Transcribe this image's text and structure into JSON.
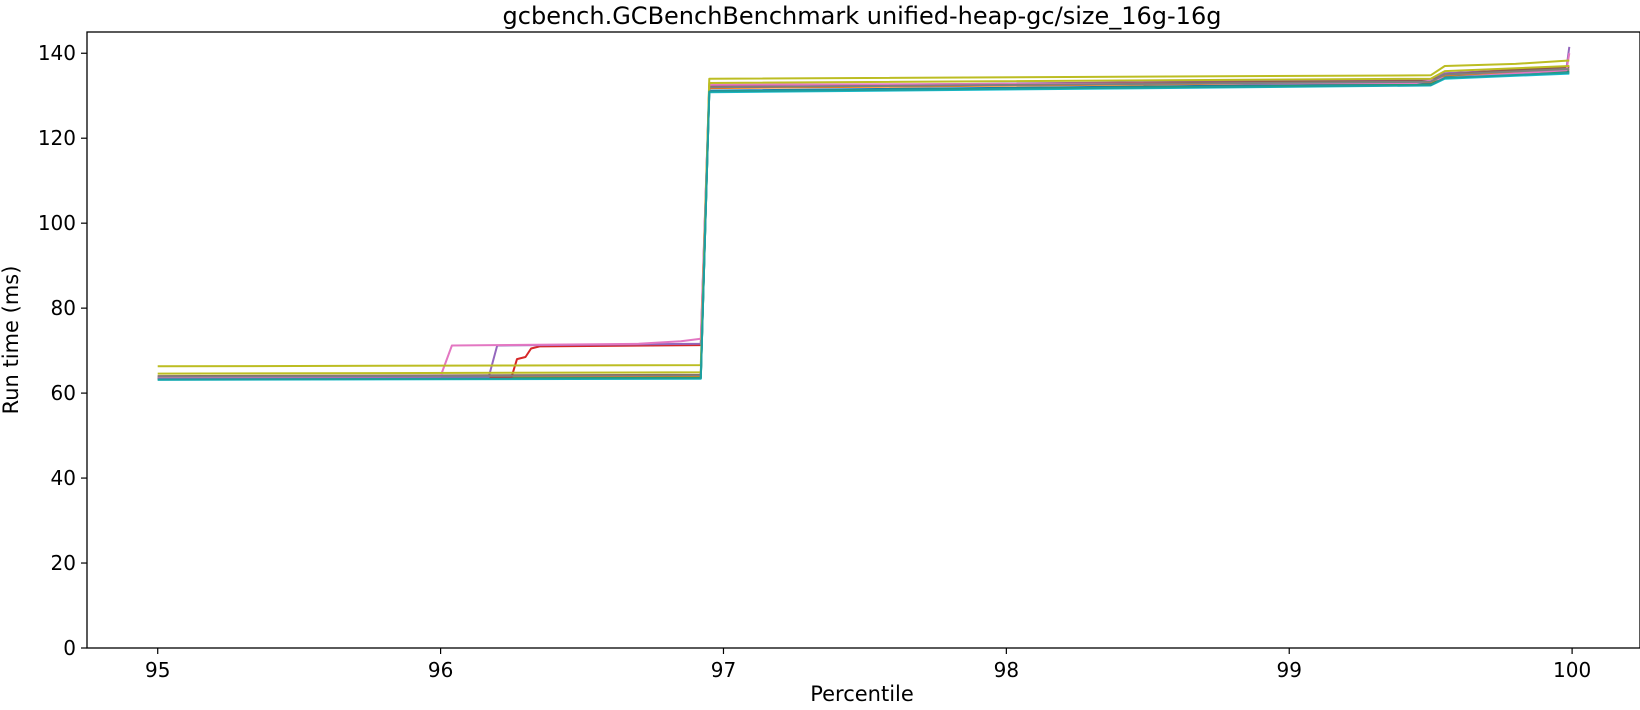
{
  "chart_data": {
    "type": "line",
    "title": "gcbench.GCBenchBenchmark unified-heap-gc/size_16g-16g",
    "xlabel": "Percentile",
    "ylabel": "Run time (ms)",
    "xlim": [
      94.75,
      100.24
    ],
    "ylim": [
      0,
      145
    ],
    "xticks": [
      95,
      96,
      97,
      98,
      99,
      100
    ],
    "yticks": [
      0,
      20,
      40,
      60,
      80,
      100,
      120,
      140
    ],
    "grid": false,
    "legend": "none",
    "series": [
      {
        "color": "#1f77b4",
        "x": [
          95,
          96.92,
          96.95,
          99.5,
          99.55,
          99.99
        ],
        "y": [
          63.5,
          63.8,
          131.2,
          132.8,
          134.5,
          135.8
        ]
      },
      {
        "color": "#ff7f0e",
        "x": [
          95,
          96.92,
          96.95,
          99.5,
          99.55,
          99.99
        ],
        "y": [
          63.8,
          64.0,
          131.8,
          133.2,
          134.8,
          136.2
        ]
      },
      {
        "color": "#2ca02c",
        "x": [
          95,
          96.92,
          96.95,
          99.5,
          99.55,
          99.99
        ],
        "y": [
          63.3,
          63.6,
          131.0,
          132.6,
          134.3,
          135.5
        ]
      },
      {
        "color": "#d62728",
        "x": [
          95,
          96.25,
          96.27,
          96.3,
          96.32,
          96.35,
          96.92,
          96.95,
          99.5,
          99.55,
          99.99
        ],
        "y": [
          63.5,
          63.6,
          68.0,
          68.5,
          70.5,
          71.0,
          71.3,
          132.0,
          133.6,
          135.2,
          136.8
        ]
      },
      {
        "color": "#9467bd",
        "x": [
          95,
          96.17,
          96.2,
          96.92,
          96.95,
          99.5,
          99.55,
          99.98,
          99.99
        ],
        "y": [
          63.6,
          63.8,
          71.2,
          71.6,
          132.2,
          133.8,
          135.3,
          136.5,
          141.5
        ]
      },
      {
        "color": "#8c564b",
        "x": [
          95,
          96.92,
          96.95,
          99.5,
          99.55,
          99.99
        ],
        "y": [
          64.0,
          64.3,
          132.3,
          133.5,
          135.0,
          136.8
        ]
      },
      {
        "color": "#e377c2",
        "x": [
          95,
          96.0,
          96.04,
          96.7,
          96.85,
          96.92,
          96.95,
          99.45,
          99.55,
          99.98,
          99.99
        ],
        "y": [
          63.8,
          64.0,
          71.2,
          71.6,
          72.2,
          72.8,
          132.6,
          133.0,
          134.2,
          136.0,
          140.0
        ]
      },
      {
        "color": "#7f7f7f",
        "x": [
          95,
          96.92,
          96.95,
          99.5,
          99.55,
          99.99
        ],
        "y": [
          63.9,
          64.2,
          132.0,
          133.3,
          135.0,
          136.3
        ]
      },
      {
        "color": "#bcbd22",
        "x": [
          95,
          96.92,
          96.95,
          99.5,
          99.55,
          99.8,
          99.99
        ],
        "y": [
          66.3,
          66.6,
          134.0,
          134.8,
          137.0,
          137.5,
          138.3
        ]
      },
      {
        "color": "#bcbd22",
        "x": [
          95,
          96.92,
          96.95,
          99.5,
          99.55,
          99.99
        ],
        "y": [
          64.6,
          64.9,
          133.0,
          134.0,
          135.8,
          137.0
        ]
      },
      {
        "color": "#17becf",
        "x": [
          95,
          96.92,
          96.95,
          99.5,
          99.55,
          99.99
        ],
        "y": [
          63.1,
          63.4,
          130.8,
          132.4,
          134.0,
          135.2
        ]
      },
      {
        "color": "#1f9e9e",
        "x": [
          95,
          96.92,
          96.95,
          99.5,
          99.55,
          99.99
        ],
        "y": [
          63.2,
          63.5,
          131.0,
          132.5,
          134.2,
          135.4
        ]
      }
    ]
  }
}
